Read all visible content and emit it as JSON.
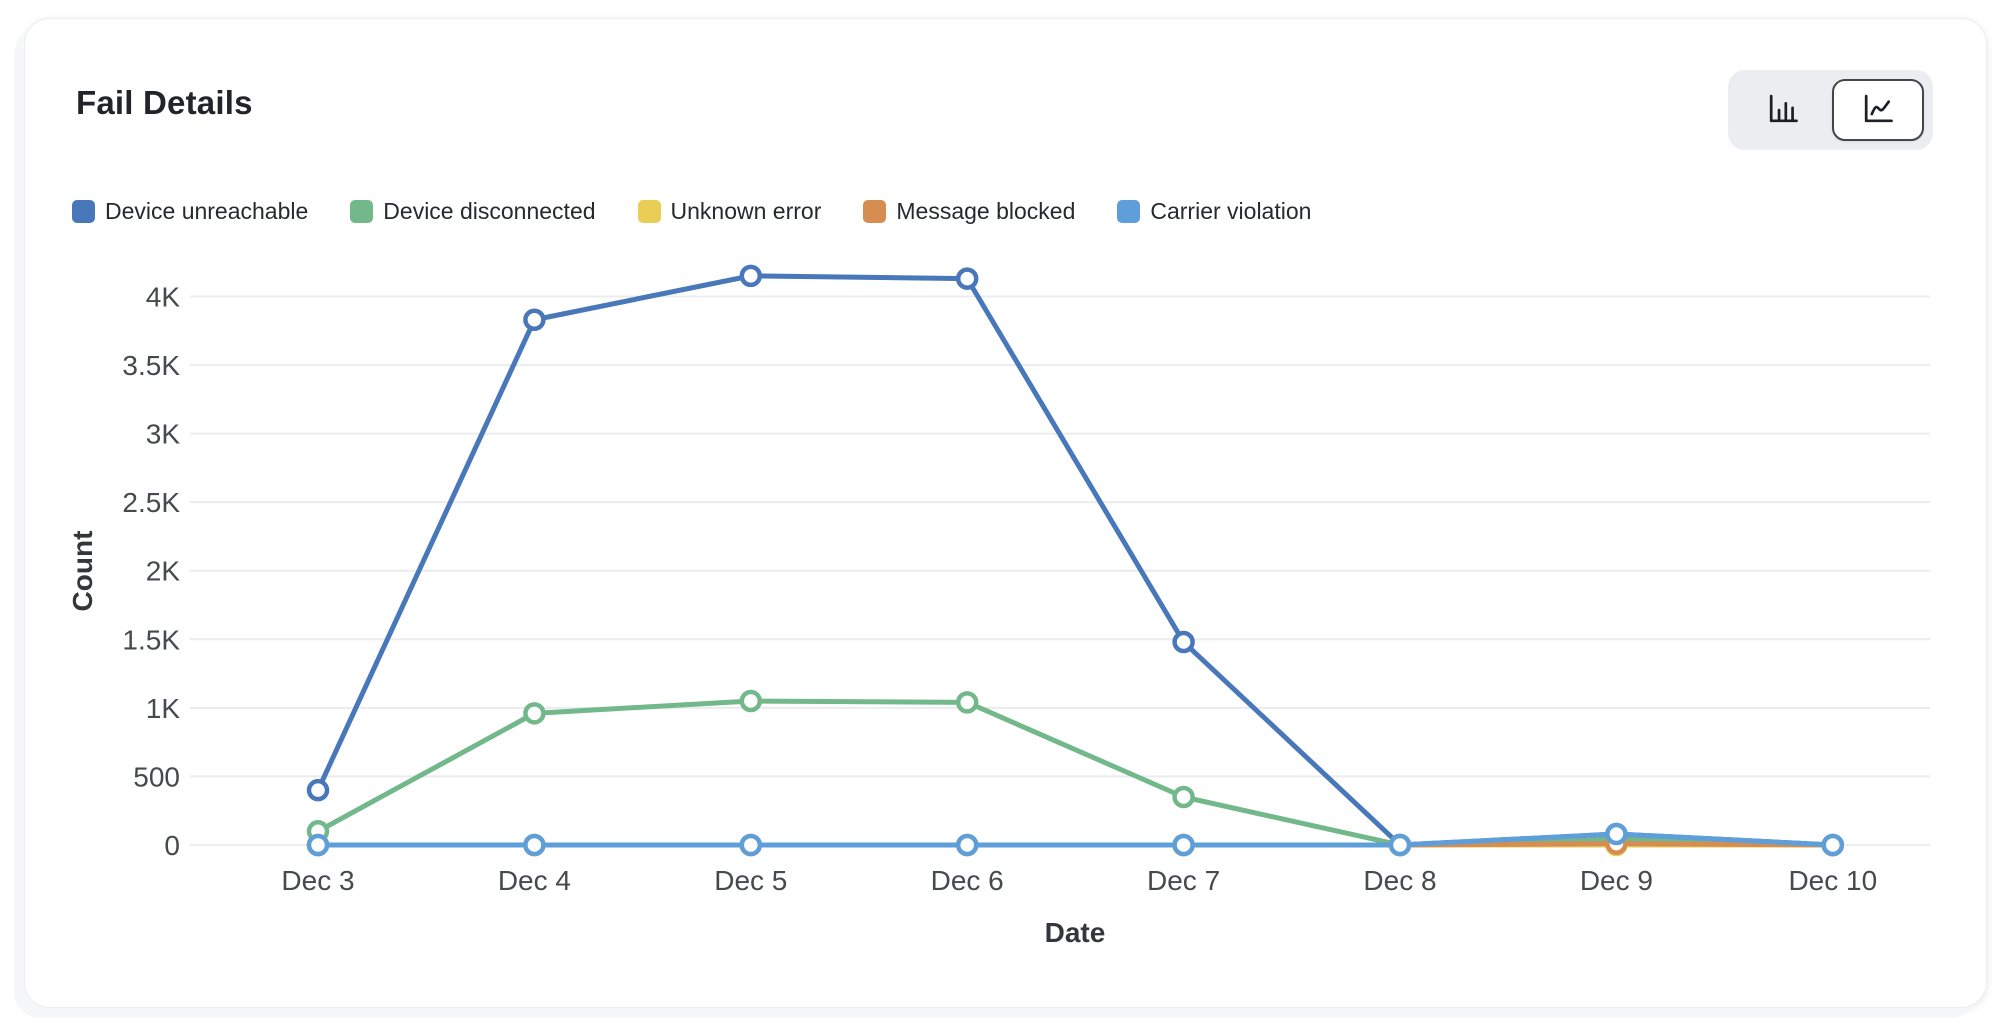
{
  "header": {
    "title": "Fail Details"
  },
  "toolbar": {
    "buttons": [
      {
        "icon": "bar-chart-icon",
        "selected": false
      },
      {
        "icon": "line-chart-icon",
        "selected": true
      }
    ]
  },
  "theme": {
    "grid_color": "#ebecef",
    "tick_color": "#46494e",
    "marker_fill": "#ffffff"
  },
  "chart_data": {
    "type": "line",
    "title": "Fail Details",
    "xlabel": "Date",
    "ylabel": "Count",
    "categories": [
      "Dec 3",
      "Dec 4",
      "Dec 5",
      "Dec 6",
      "Dec 7",
      "Dec 8",
      "Dec 9",
      "Dec 10"
    ],
    "y_ticks": [
      {
        "label": "0",
        "value": 0
      },
      {
        "label": "500",
        "value": 500
      },
      {
        "label": "1K",
        "value": 1000
      },
      {
        "label": "1.5K",
        "value": 1500
      },
      {
        "label": "2K",
        "value": 2000
      },
      {
        "label": "2.5K",
        "value": 2500
      },
      {
        "label": "3K",
        "value": 3000
      },
      {
        "label": "3.5K",
        "value": 3500
      },
      {
        "label": "4K",
        "value": 4000
      }
    ],
    "ylim": [
      0,
      4400
    ],
    "grid": "horizontal",
    "legend_position": "top",
    "series": [
      {
        "name": "Device unreachable",
        "color": "#4878b9",
        "values": [
          400,
          3830,
          4150,
          4130,
          1480,
          0,
          80,
          0
        ]
      },
      {
        "name": "Device disconnected",
        "color": "#72b88b",
        "values": [
          100,
          960,
          1050,
          1040,
          350,
          0,
          45,
          0
        ]
      },
      {
        "name": "Unknown error",
        "color": "#e9cd55",
        "values": [
          0,
          0,
          0,
          0,
          0,
          0,
          0,
          0
        ]
      },
      {
        "name": "Message blocked",
        "color": "#d68d51",
        "values": [
          0,
          0,
          0,
          0,
          0,
          0,
          10,
          0
        ]
      },
      {
        "name": "Carrier violation",
        "color": "#5e9fda",
        "values": [
          0,
          0,
          0,
          0,
          0,
          0,
          80,
          0
        ]
      }
    ]
  }
}
